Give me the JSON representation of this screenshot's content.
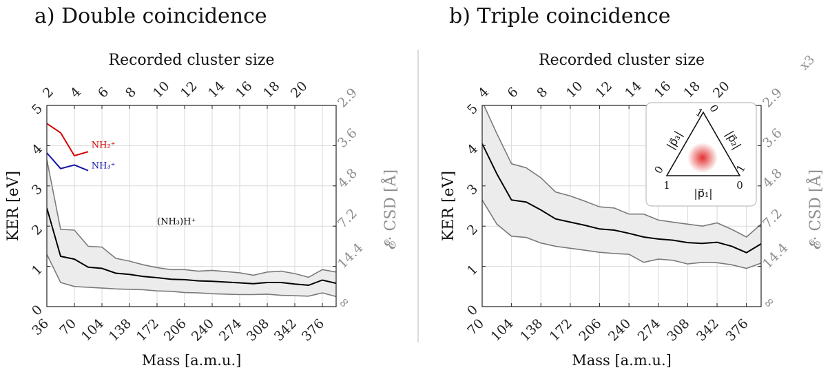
{
  "chart_data": [
    {
      "id": "a",
      "type": "area",
      "title": "a) Double coincidence",
      "xlabel": "Mass [a.m.u.]",
      "ylabel": "KER [eV]",
      "top_xlabel": "Recorded cluster size",
      "right_ylabel": "𝓔· CSD [Å]",
      "xlim": [
        36,
        393
      ],
      "ylim": [
        0,
        5
      ],
      "x_ticks": [
        36,
        70,
        104,
        138,
        172,
        206,
        240,
        274,
        308,
        342,
        376
      ],
      "y_ticks": [
        0,
        1,
        2,
        3,
        4,
        5
      ],
      "top_ticks": [
        {
          "label": "2",
          "mass": 36
        },
        {
          "label": "4",
          "mass": 70
        },
        {
          "label": "6",
          "mass": 104
        },
        {
          "label": "8",
          "mass": 138
        },
        {
          "label": "10",
          "mass": 172
        },
        {
          "label": "12",
          "mass": 206
        },
        {
          "label": "14",
          "mass": 240
        },
        {
          "label": "16",
          "mass": 274
        },
        {
          "label": "18",
          "mass": 308
        },
        {
          "label": "20",
          "mass": 342
        }
      ],
      "right_ticks": [
        {
          "label": "2.9",
          "ker": 5
        },
        {
          "label": "3.6",
          "ker": 4
        },
        {
          "label": "4.8",
          "ker": 3
        },
        {
          "label": "7.2",
          "ker": 2
        },
        {
          "label": "14.4",
          "ker": 1
        },
        {
          "label": "∞",
          "ker": 0
        }
      ],
      "grid": true,
      "band": {
        "x": [
          36,
          53,
          70,
          87,
          104,
          121,
          138,
          155,
          172,
          189,
          206,
          223,
          240,
          257,
          274,
          291,
          308,
          325,
          342,
          359,
          376,
          393
        ],
        "upper": [
          3.65,
          1.92,
          1.9,
          1.5,
          1.48,
          1.2,
          1.13,
          1.04,
          0.97,
          0.92,
          0.92,
          0.88,
          0.9,
          0.87,
          0.84,
          0.78,
          0.86,
          0.88,
          0.82,
          0.73,
          0.92,
          0.86
        ],
        "lower": [
          1.3,
          0.6,
          0.5,
          0.48,
          0.46,
          0.44,
          0.43,
          0.42,
          0.39,
          0.38,
          0.35,
          0.34,
          0.32,
          0.31,
          0.3,
          0.3,
          0.31,
          0.28,
          0.27,
          0.26,
          0.34,
          0.25
        ]
      },
      "series": [
        {
          "name": "(NH₃)H⁺",
          "color": "#000000",
          "x": [
            36,
            53,
            70,
            87,
            104,
            121,
            138,
            155,
            172,
            189,
            206,
            223,
            240,
            257,
            274,
            291,
            308,
            325,
            342,
            359,
            376,
            393
          ],
          "values": [
            2.45,
            1.25,
            1.18,
            0.98,
            0.95,
            0.83,
            0.8,
            0.75,
            0.72,
            0.68,
            0.67,
            0.64,
            0.63,
            0.61,
            0.59,
            0.57,
            0.6,
            0.6,
            0.56,
            0.53,
            0.66,
            0.58
          ]
        },
        {
          "name": "NH₂⁺",
          "color": "#d40000",
          "x": [
            36,
            53,
            70,
            87
          ],
          "values": [
            4.55,
            4.32,
            3.75,
            3.85
          ]
        },
        {
          "name": "NH₃⁺",
          "color": "#1414a8",
          "x": [
            36,
            53,
            70,
            87
          ],
          "values": [
            3.82,
            3.43,
            3.52,
            3.38
          ]
        }
      ]
    },
    {
      "id": "b",
      "type": "area",
      "title": "b) Triple coincidence",
      "xlabel": "Mass [a.m.u.]",
      "ylabel": "KER [eV]",
      "top_xlabel": "Recorded cluster size",
      "right_ylabel": "𝓔· CSD [Å]",
      "scale_note": "x3",
      "xlim": [
        70,
        393
      ],
      "ylim": [
        0,
        5
      ],
      "x_ticks": [
        70,
        104,
        138,
        172,
        206,
        240,
        274,
        308,
        342,
        376
      ],
      "y_ticks": [
        0,
        1,
        2,
        3,
        4,
        5
      ],
      "top_ticks": [
        {
          "label": "4",
          "mass": 70
        },
        {
          "label": "6",
          "mass": 104
        },
        {
          "label": "8",
          "mass": 138
        },
        {
          "label": "10",
          "mass": 172
        },
        {
          "label": "12",
          "mass": 206
        },
        {
          "label": "14",
          "mass": 240
        },
        {
          "label": "16",
          "mass": 274
        },
        {
          "label": "18",
          "mass": 308
        },
        {
          "label": "20",
          "mass": 342
        }
      ],
      "right_ticks": [
        {
          "label": "2.9",
          "ker": 5
        },
        {
          "label": "3.6",
          "ker": 4
        },
        {
          "label": "4.8",
          "ker": 3
        },
        {
          "label": "7.2",
          "ker": 2
        },
        {
          "label": "14.4",
          "ker": 1
        },
        {
          "label": "∞",
          "ker": 0
        }
      ],
      "grid": true,
      "band": {
        "x": [
          70,
          87,
          104,
          121,
          138,
          155,
          172,
          189,
          206,
          223,
          240,
          257,
          274,
          291,
          308,
          325,
          342,
          359,
          376,
          393
        ],
        "upper": [
          5.1,
          4.3,
          3.55,
          3.45,
          3.2,
          2.85,
          2.75,
          2.62,
          2.48,
          2.45,
          2.3,
          2.3,
          2.15,
          2.1,
          2.05,
          2.0,
          2.08,
          1.92,
          1.73,
          2.05
        ],
        "lower": [
          2.65,
          2.05,
          1.75,
          1.72,
          1.58,
          1.5,
          1.45,
          1.4,
          1.35,
          1.32,
          1.3,
          1.1,
          1.18,
          1.15,
          1.06,
          1.1,
          1.09,
          1.04,
          0.95,
          1.08
        ]
      },
      "series": [
        {
          "name": "",
          "color": "#000000",
          "x": [
            70,
            87,
            104,
            121,
            138,
            155,
            172,
            189,
            206,
            223,
            240,
            257,
            274,
            291,
            308,
            325,
            342,
            359,
            376,
            393
          ],
          "values": [
            4.05,
            3.3,
            2.65,
            2.6,
            2.4,
            2.18,
            2.1,
            2.02,
            1.93,
            1.9,
            1.82,
            1.73,
            1.68,
            1.65,
            1.59,
            1.57,
            1.6,
            1.5,
            1.34,
            1.56
          ]
        }
      ],
      "inset": {
        "type": "dalitz",
        "axis_labels": [
          "|p⃗₁|",
          "|p⃗₂|",
          "|p⃗₃|"
        ],
        "corner_labels": [
          "1",
          "0",
          "1",
          "0",
          "1",
          "0"
        ],
        "hotspot_color": "#e23030"
      }
    }
  ],
  "colors": {
    "grid": "#d9d9d9",
    "band_fill": "#ececec",
    "band_edge": "#7a7a7a",
    "right_axis": "#8f8f8f",
    "divider": "#dcdcdc"
  }
}
